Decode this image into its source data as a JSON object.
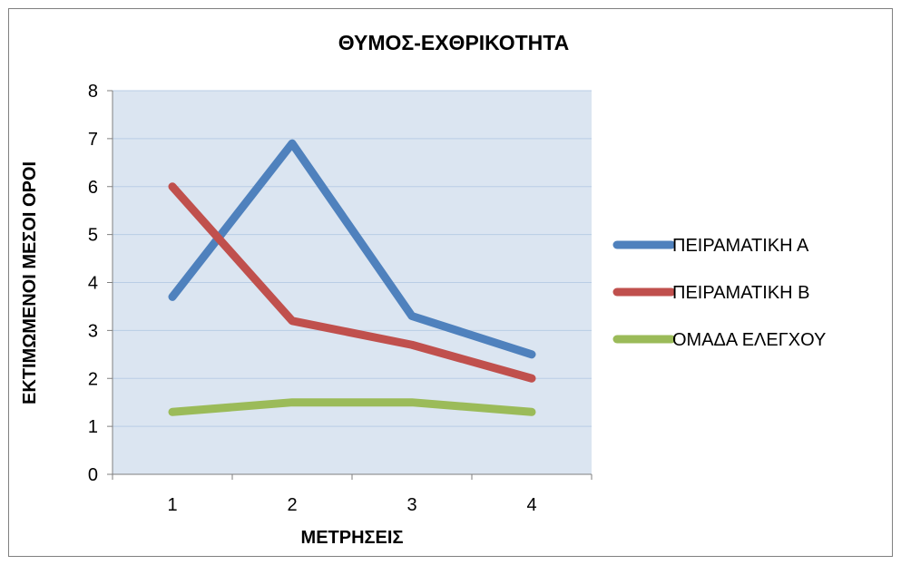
{
  "chart_data": {
    "type": "line",
    "title": "ΘΥΜΟΣ-ΕΧΘΡΙΚΟΤΗΤΑ",
    "xlabel": "ΜΕΤΡΗΣΕΙΣ",
    "ylabel": "ΕΚΤΙΜΩΜΕΝΟΙ ΜΕΣΟΙ ΟΡΟΙ",
    "categories": [
      "1",
      "2",
      "3",
      "4"
    ],
    "ylim": [
      0,
      8
    ],
    "yticks": [
      "0",
      "1",
      "2",
      "3",
      "4",
      "5",
      "6",
      "7",
      "8"
    ],
    "grid": true,
    "legend": "right",
    "series": [
      {
        "name": "ΠΕΙΡΑΜΑΤΙΚΗ Α",
        "color": "#4f81bd",
        "values": [
          3.7,
          6.9,
          3.3,
          2.5
        ]
      },
      {
        "name": "ΠΕΙΡΑΜΑΤΙΚΗ Β",
        "color": "#c0504d",
        "values": [
          6.0,
          3.2,
          2.7,
          2.0
        ]
      },
      {
        "name": "ΟΜΑΔΑ ΕΛΕΓΧΟΥ",
        "color": "#9bbb59",
        "values": [
          1.3,
          1.5,
          1.5,
          1.3
        ]
      }
    ]
  }
}
